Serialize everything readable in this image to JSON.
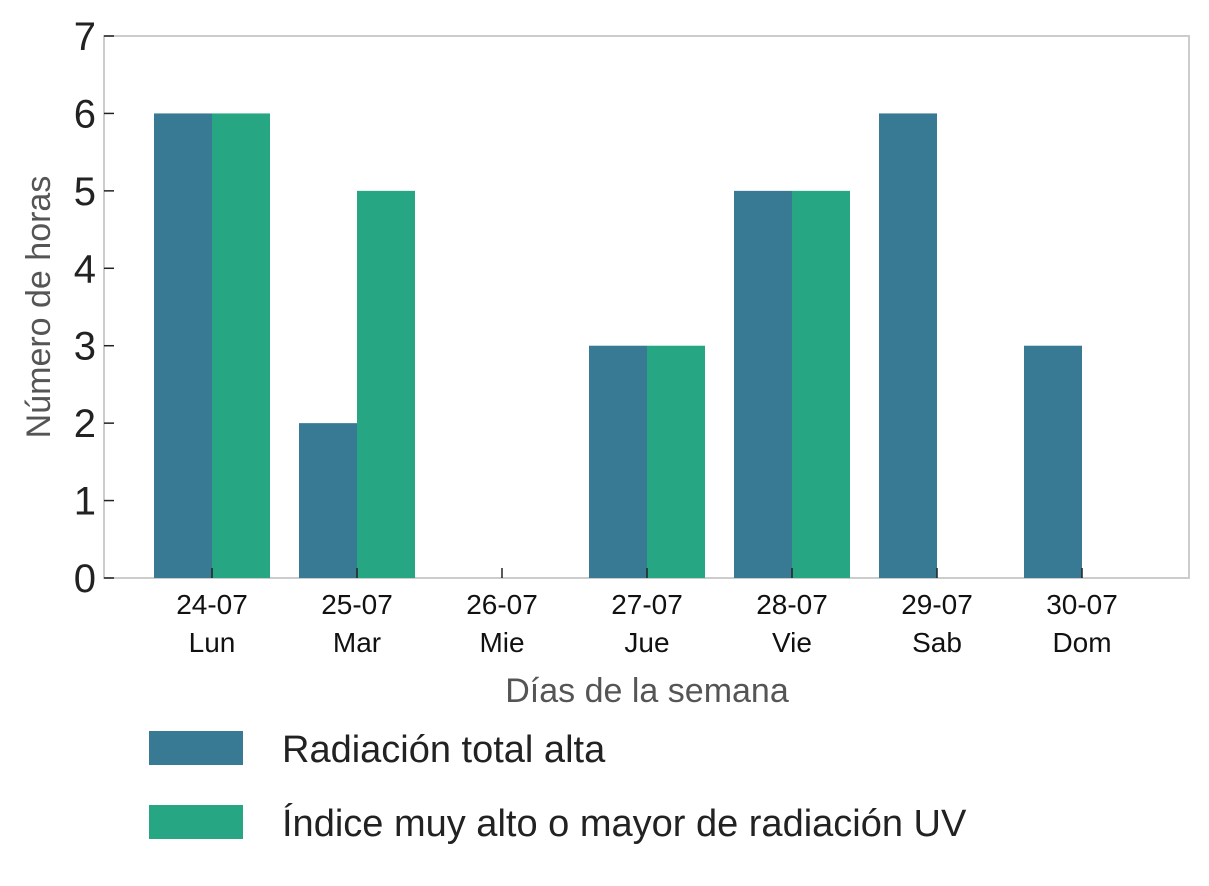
{
  "chart_data": {
    "type": "bar",
    "title": "",
    "xlabel": "Días de la semana",
    "ylabel": "Número de horas",
    "categories": [
      [
        "24-07",
        "Lun"
      ],
      [
        "25-07",
        "Mar"
      ],
      [
        "26-07",
        "Mie"
      ],
      [
        "27-07",
        "Jue"
      ],
      [
        "28-07",
        "Vie"
      ],
      [
        "29-07",
        "Sab"
      ],
      [
        "30-07",
        "Dom"
      ]
    ],
    "series": [
      {
        "name": "Radiación total alta",
        "color": "#387a93",
        "values": [
          6,
          2,
          0,
          3,
          5,
          6,
          3
        ]
      },
      {
        "name": "Índice muy alto o mayor de radiación UV",
        "color": "#27a684",
        "values": [
          6,
          5,
          0,
          3,
          5,
          0,
          0
        ]
      }
    ],
    "ylim": [
      0,
      7
    ],
    "yticks": [
      0,
      1,
      2,
      3,
      4,
      5,
      6,
      7
    ],
    "grid": false,
    "legend": "bottom"
  }
}
